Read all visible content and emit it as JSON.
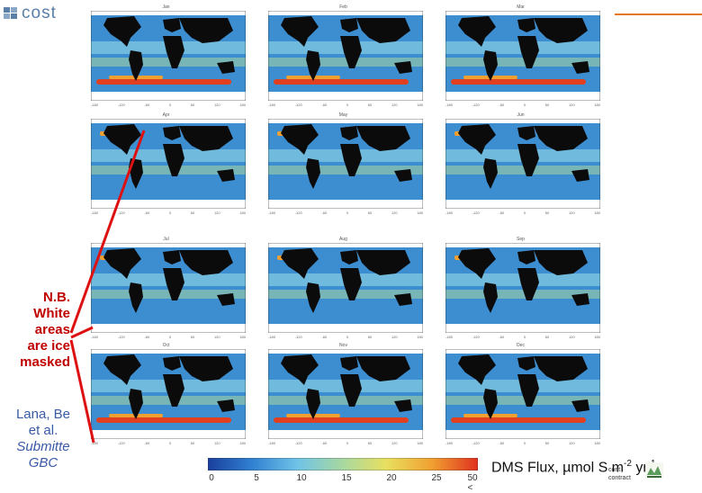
{
  "header": {
    "logo_text": "cost",
    "accent_color": "#e87722",
    "brand_color": "#5a7fa8"
  },
  "panels": [
    {
      "month": "Jan"
    },
    {
      "month": "Feb"
    },
    {
      "month": "Mar"
    },
    {
      "month": "Apr"
    },
    {
      "month": "May"
    },
    {
      "month": "Jun"
    },
    {
      "month": "Jul"
    },
    {
      "month": "Aug"
    },
    {
      "month": "Sep"
    },
    {
      "month": "Oct"
    },
    {
      "month": "Nov"
    },
    {
      "month": "Dec"
    }
  ],
  "map_axis_ticks": [
    "-180",
    "-120",
    "-60",
    "0",
    "60",
    "120",
    "180"
  ],
  "note": {
    "lines": [
      "N.B.",
      "White",
      "areas",
      "are ice",
      "masked"
    ],
    "color": "#c00000"
  },
  "citation": {
    "line1": "Lana, Be",
    "line2": "et al.",
    "line3": "Submitte",
    "line4": "GBC"
  },
  "colorbar": {
    "ticks": [
      "0",
      "5",
      "10",
      "15",
      "20",
      "25",
      "50 <"
    ],
    "label_main": "DMS Flux, µmol S m",
    "label_exp1": "-2",
    "label_mid": " yr",
    "label_exp2": "-1",
    "colors": [
      "#1a3f9c",
      "#2f7fd0",
      "#6fc3e8",
      "#a8d8a0",
      "#e8e060",
      "#f0a030",
      "#e03020"
    ]
  },
  "footer": {
    "tiny_line1": "cont",
    "tiny_line2": "contract"
  }
}
